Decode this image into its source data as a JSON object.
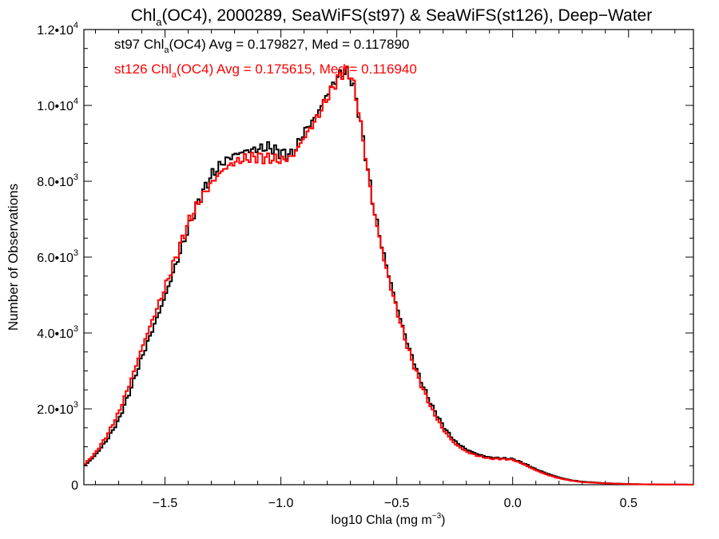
{
  "chart_data": {
    "type": "line",
    "title": {
      "prefix": "Chl",
      "sub": "a",
      "suffix": "(OC4), 2000289, SeaWiFS(st97) & SeaWiFS(st126), Deep−Water"
    },
    "xlabel": {
      "main": "log10 Chla (mg m",
      "sup": "−3",
      "end": ")"
    },
    "ylabel": "Number of Observations",
    "xlim": [
      -1.85,
      0.78
    ],
    "ylim": [
      0,
      12000
    ],
    "x_ticks": [
      {
        "value": -1.5,
        "label": "−1.5"
      },
      {
        "value": -1.0,
        "label": "−1.0"
      },
      {
        "value": -0.5,
        "label": "−0.5"
      },
      {
        "value": 0.0,
        "label": "0.0"
      },
      {
        "value": 0.5,
        "label": "0.5"
      }
    ],
    "y_ticks": [
      {
        "value": 0,
        "mant": "0",
        "exp": ""
      },
      {
        "value": 2000,
        "mant": "2.0•10",
        "exp": "3"
      },
      {
        "value": 4000,
        "mant": "4.0•10",
        "exp": "3"
      },
      {
        "value": 6000,
        "mant": "6.0•10",
        "exp": "3"
      },
      {
        "value": 8000,
        "mant": "8.0•10",
        "exp": "3"
      },
      {
        "value": 10000,
        "mant": "1.0•10",
        "exp": "4"
      },
      {
        "value": 12000,
        "mant": "1.2•10",
        "exp": "4"
      }
    ],
    "series": [
      {
        "color": "#000000",
        "legend": {
          "pre": "st97 Chl",
          "sub": "a",
          "post": "(OC4) Avg = 0.179827, Med = 0.117890"
        },
        "points": [
          [
            -1.85,
            480
          ],
          [
            -1.8,
            780
          ],
          [
            -1.75,
            1180
          ],
          [
            -1.7,
            1700
          ],
          [
            -1.65,
            2480
          ],
          [
            -1.6,
            3350
          ],
          [
            -1.55,
            4150
          ],
          [
            -1.5,
            4950
          ],
          [
            -1.45,
            5850
          ],
          [
            -1.4,
            6750
          ],
          [
            -1.35,
            7550
          ],
          [
            -1.3,
            8150
          ],
          [
            -1.25,
            8500
          ],
          [
            -1.2,
            8700
          ],
          [
            -1.15,
            8800
          ],
          [
            -1.1,
            8850
          ],
          [
            -1.05,
            8900
          ],
          [
            -1.0,
            8750
          ],
          [
            -0.95,
            8700
          ],
          [
            -0.9,
            9300
          ],
          [
            -0.85,
            9700
          ],
          [
            -0.8,
            10300
          ],
          [
            -0.75,
            10800
          ],
          [
            -0.72,
            10900
          ],
          [
            -0.69,
            10600
          ],
          [
            -0.66,
            9700
          ],
          [
            -0.63,
            8500
          ],
          [
            -0.6,
            7300
          ],
          [
            -0.55,
            5900
          ],
          [
            -0.5,
            4700
          ],
          [
            -0.45,
            3650
          ],
          [
            -0.4,
            2800
          ],
          [
            -0.35,
            2100
          ],
          [
            -0.3,
            1550
          ],
          [
            -0.25,
            1150
          ],
          [
            -0.2,
            930
          ],
          [
            -0.15,
            800
          ],
          [
            -0.1,
            720
          ],
          [
            -0.05,
            700
          ],
          [
            0.0,
            680
          ],
          [
            0.05,
            560
          ],
          [
            0.1,
            410
          ],
          [
            0.15,
            290
          ],
          [
            0.2,
            190
          ],
          [
            0.25,
            120
          ],
          [
            0.3,
            80
          ],
          [
            0.4,
            40
          ],
          [
            0.5,
            18
          ],
          [
            0.6,
            8
          ],
          [
            0.78,
            3
          ]
        ]
      },
      {
        "color": "#ff0000",
        "legend": {
          "pre": "st126 Chl",
          "sub": "a",
          "post": "(OC4) Avg = 0.175615, Med = 0.116940"
        },
        "points": [
          [
            -1.85,
            520
          ],
          [
            -1.8,
            840
          ],
          [
            -1.75,
            1300
          ],
          [
            -1.7,
            1900
          ],
          [
            -1.65,
            2700
          ],
          [
            -1.6,
            3600
          ],
          [
            -1.55,
            4400
          ],
          [
            -1.5,
            5200
          ],
          [
            -1.45,
            6050
          ],
          [
            -1.4,
            6900
          ],
          [
            -1.35,
            7500
          ],
          [
            -1.3,
            7950
          ],
          [
            -1.25,
            8300
          ],
          [
            -1.2,
            8500
          ],
          [
            -1.15,
            8600
          ],
          [
            -1.1,
            8650
          ],
          [
            -1.05,
            8600
          ],
          [
            -1.0,
            8550
          ],
          [
            -0.95,
            8650
          ],
          [
            -0.9,
            9150
          ],
          [
            -0.85,
            9600
          ],
          [
            -0.8,
            10200
          ],
          [
            -0.75,
            10750
          ],
          [
            -0.72,
            10950
          ],
          [
            -0.69,
            10700
          ],
          [
            -0.66,
            9700
          ],
          [
            -0.63,
            8450
          ],
          [
            -0.6,
            7250
          ],
          [
            -0.55,
            5800
          ],
          [
            -0.5,
            4600
          ],
          [
            -0.45,
            3550
          ],
          [
            -0.4,
            2700
          ],
          [
            -0.35,
            2000
          ],
          [
            -0.3,
            1450
          ],
          [
            -0.25,
            1080
          ],
          [
            -0.2,
            870
          ],
          [
            -0.15,
            760
          ],
          [
            -0.1,
            690
          ],
          [
            -0.05,
            680
          ],
          [
            0.0,
            660
          ],
          [
            0.05,
            530
          ],
          [
            0.1,
            380
          ],
          [
            0.15,
            260
          ],
          [
            0.2,
            170
          ],
          [
            0.25,
            110
          ],
          [
            0.3,
            70
          ],
          [
            0.4,
            35
          ],
          [
            0.5,
            15
          ],
          [
            0.6,
            7
          ],
          [
            0.78,
            3
          ]
        ]
      }
    ],
    "grid": false,
    "legend_position": "top-left"
  }
}
